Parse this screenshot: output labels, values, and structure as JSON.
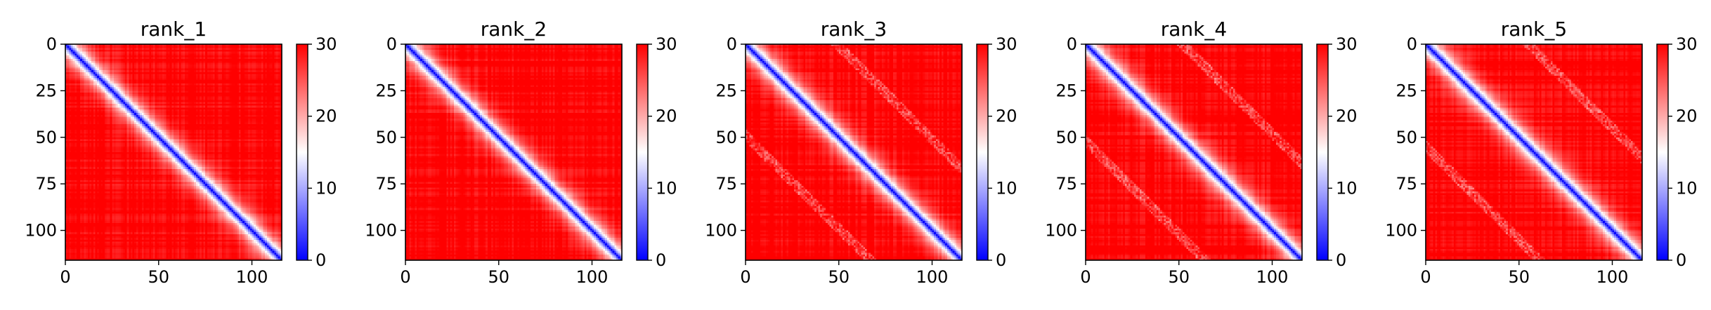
{
  "chart_data": [
    {
      "type": "heatmap",
      "title": "rank_1",
      "matrix_size": 116,
      "xlim": [
        0,
        116
      ],
      "ylim": [
        116,
        0
      ],
      "x_ticks": [
        0,
        50,
        100
      ],
      "y_ticks": [
        0,
        25,
        50,
        75,
        100
      ],
      "color_range": [
        0,
        30
      ],
      "colorbar_ticks": [
        0,
        10,
        20,
        30
      ],
      "colormap": [
        "#0000ff",
        "#ffffff",
        "#ff0000"
      ],
      "diagonal_value": 0,
      "background_value": 30
    },
    {
      "type": "heatmap",
      "title": "rank_2",
      "matrix_size": 116,
      "xlim": [
        0,
        116
      ],
      "ylim": [
        116,
        0
      ],
      "x_ticks": [
        0,
        50,
        100
      ],
      "y_ticks": [
        0,
        25,
        50,
        75,
        100
      ],
      "color_range": [
        0,
        30
      ],
      "colorbar_ticks": [
        0,
        10,
        20,
        30
      ],
      "colormap": [
        "#0000ff",
        "#ffffff",
        "#ff0000"
      ],
      "diagonal_value": 0,
      "background_value": 30
    },
    {
      "type": "heatmap",
      "title": "rank_3",
      "matrix_size": 116,
      "xlim": [
        0,
        116
      ],
      "ylim": [
        116,
        0
      ],
      "x_ticks": [
        0,
        50,
        100
      ],
      "y_ticks": [
        0,
        25,
        50,
        75,
        100
      ],
      "color_range": [
        0,
        30
      ],
      "colorbar_ticks": [
        0,
        10,
        20,
        30
      ],
      "colormap": [
        "#0000ff",
        "#ffffff",
        "#ff0000"
      ],
      "diagonal_value": 0,
      "background_value": 30
    },
    {
      "type": "heatmap",
      "title": "rank_4",
      "matrix_size": 116,
      "xlim": [
        0,
        116
      ],
      "ylim": [
        116,
        0
      ],
      "x_ticks": [
        0,
        50,
        100
      ],
      "y_ticks": [
        0,
        25,
        50,
        75,
        100
      ],
      "color_range": [
        0,
        30
      ],
      "colorbar_ticks": [
        0,
        10,
        20,
        30
      ],
      "colormap": [
        "#0000ff",
        "#ffffff",
        "#ff0000"
      ],
      "diagonal_value": 0,
      "background_value": 30
    },
    {
      "type": "heatmap",
      "title": "rank_5",
      "matrix_size": 116,
      "xlim": [
        0,
        116
      ],
      "ylim": [
        116,
        0
      ],
      "x_ticks": [
        0,
        50,
        100
      ],
      "y_ticks": [
        0,
        25,
        50,
        75,
        100
      ],
      "color_range": [
        0,
        30
      ],
      "colorbar_ticks": [
        0,
        10,
        20,
        30
      ],
      "colormap": [
        "#0000ff",
        "#ffffff",
        "#ff0000"
      ],
      "diagonal_value": 0,
      "background_value": 30
    }
  ]
}
